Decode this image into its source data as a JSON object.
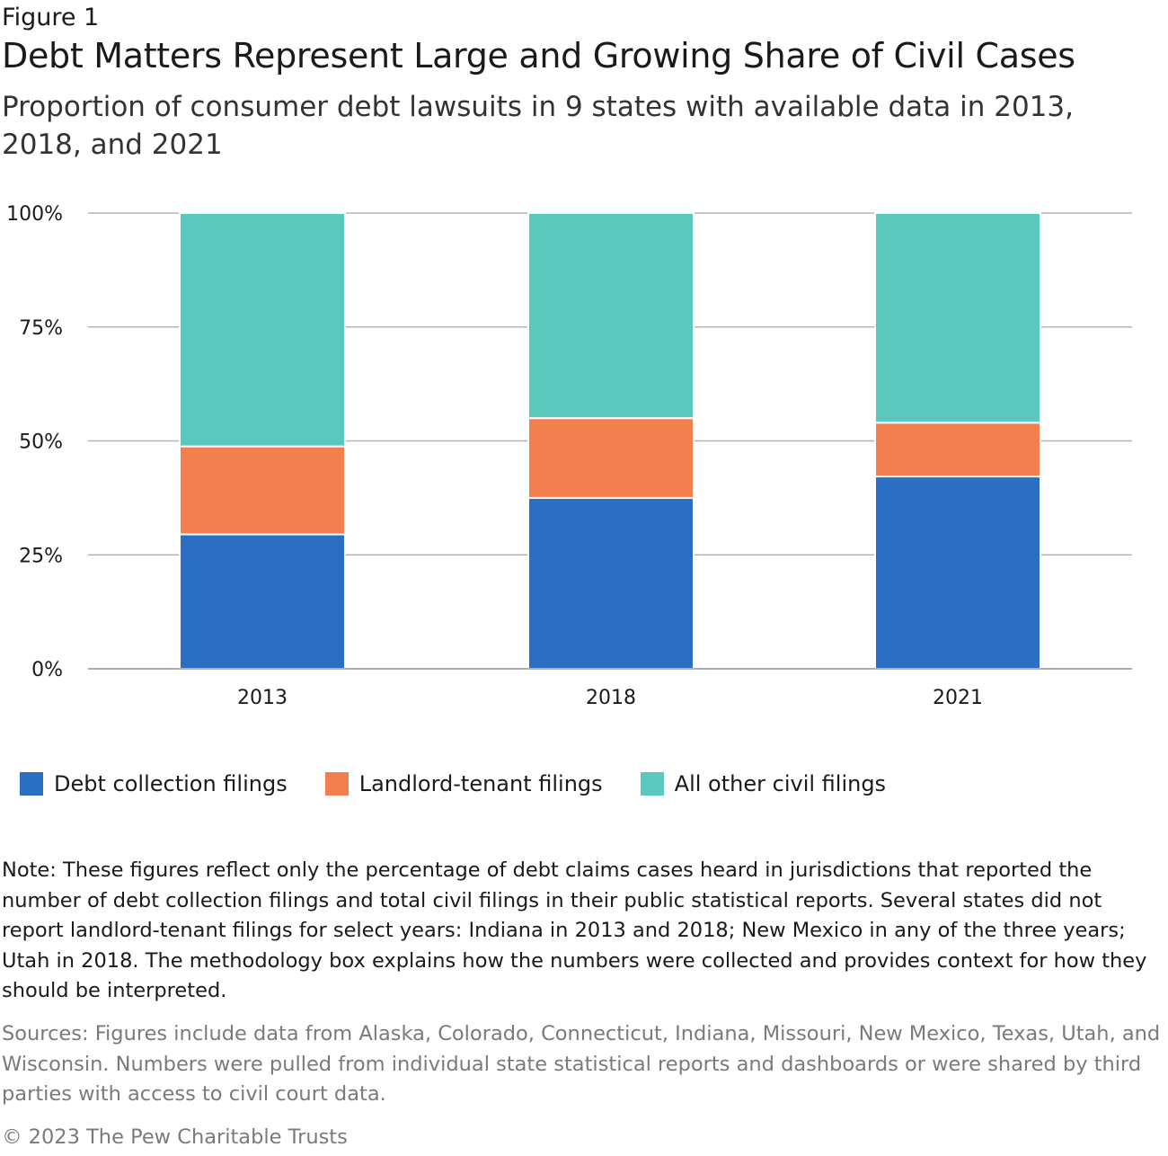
{
  "header": {
    "figure_label": "Figure 1",
    "title": "Debt Matters Represent Large and Growing Share of Civil Cases",
    "subtitle": "Proportion of consumer debt lawsuits in 9 states with available data in 2013, 2018, and 2021"
  },
  "chart_data": {
    "type": "bar",
    "stacked": true,
    "categories": [
      "2013",
      "2018",
      "2021"
    ],
    "series": [
      {
        "name": "Debt collection filings",
        "color": "#2b6fc4",
        "values": [
          29.5,
          37.5,
          42.2
        ]
      },
      {
        "name": "Landlord-tenant filings",
        "color": "#f47f4e",
        "values": [
          19.3,
          17.5,
          11.8
        ]
      },
      {
        "name": "All other civil filings",
        "color": "#5bc8bf",
        "values": [
          51.2,
          45.0,
          46.0
        ]
      }
    ],
    "ylim": [
      0,
      100
    ],
    "yticks": [
      0,
      25,
      50,
      75,
      100
    ],
    "ytick_labels": [
      "0%",
      "25%",
      "50%",
      "75%",
      "100%"
    ],
    "grid": true,
    "legend_position": "bottom-left"
  },
  "footer": {
    "note": "Note: These figures reflect only the percentage of debt claims cases heard in jurisdictions that reported the number of debt collection filings and total civil filings in their public statistical reports. Several states did not report landlord-tenant filings for select years: Indiana in 2013 and 2018; New Mexico in any of the three years; Utah in 2018. The methodology box explains how the numbers were collected and provides context for how they should be interpreted.",
    "sources": "Sources: Figures include data from Alaska, Colorado, Connecticut, Indiana, Missouri, New Mexico, Texas, Utah, and Wisconsin. Numbers were pulled from individual state statistical reports and dashboards or were shared by third parties with access to civil court data.",
    "copyright": "© 2023 The Pew Charitable Trusts"
  }
}
